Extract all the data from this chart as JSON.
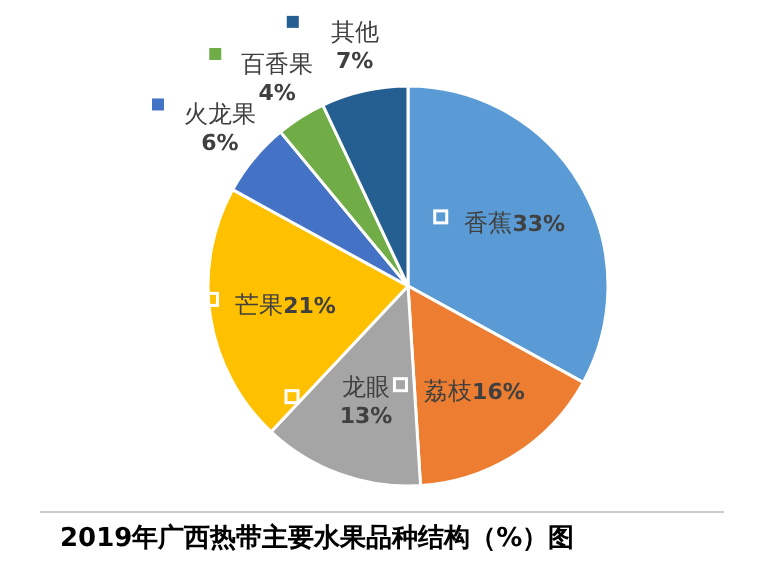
{
  "chart_data": {
    "type": "pie",
    "title": "2019年广西热带主要水果品种结构（%）图",
    "categories": [
      "香蕉",
      "荔枝",
      "龙眼",
      "芒果",
      "火龙果",
      "百香果",
      "其他"
    ],
    "values": [
      33,
      16,
      13,
      21,
      6,
      4,
      7
    ],
    "colors": [
      "#5b9bd5",
      "#ed7d31",
      "#a5a5a5",
      "#ffc000",
      "#4472c4",
      "#70ad47",
      "#255e91"
    ],
    "value_labels": [
      "33%",
      "16%",
      "13%",
      "21%",
      "6%",
      "4%",
      "7%"
    ],
    "legend": "top"
  }
}
